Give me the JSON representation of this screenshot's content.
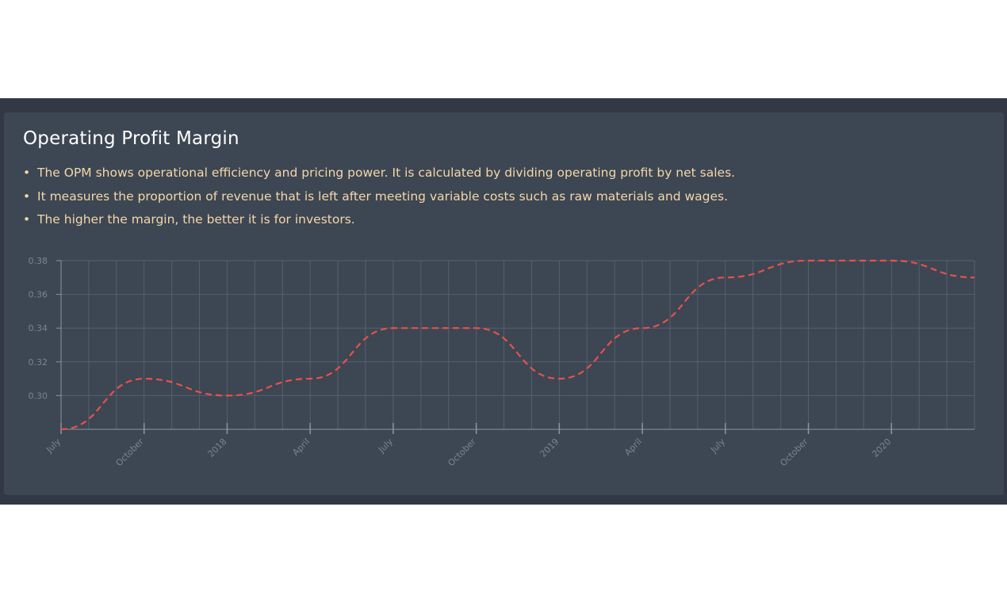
{
  "card": {
    "title": "Operating Profit Margin",
    "bullets": [
      "The OPM shows operational efficiency and pricing power. It is calculated by dividing operating profit by net sales.",
      "It measures the proportion of revenue that is left after meeting variable costs such as raw materials and wages.",
      "The higher the margin, the better it is for investors."
    ]
  },
  "colors": {
    "page_bg": "#ffffff",
    "band_bg": "#323844",
    "card_bg": "#3d4653",
    "title": "#ffffff",
    "bullet_text": "#f4d7a8",
    "line": "#e8514a",
    "grid": "#56606d",
    "axis": "#8c96a3",
    "tick_text": "#7b8491"
  },
  "chart_data": {
    "type": "line",
    "title": "",
    "xlabel": "",
    "ylabel": "",
    "x_tick_labels": [
      "July",
      "October",
      "2018",
      "April",
      "July",
      "October",
      "2019",
      "April",
      "July",
      "October",
      "2020"
    ],
    "x_tick_dates": [
      "2017-07",
      "2017-10",
      "2018-01",
      "2018-04",
      "2018-07",
      "2018-10",
      "2019-01",
      "2019-04",
      "2019-07",
      "2019-10",
      "2020-01"
    ],
    "x_range": [
      "2017-07",
      "2020-04"
    ],
    "y_ticks": [
      "0.30",
      "0.32",
      "0.34",
      "0.36",
      "0.38"
    ],
    "y_tick_values": [
      0.3,
      0.32,
      0.34,
      0.36,
      0.38
    ],
    "ylim": [
      0.28,
      0.38
    ],
    "grid": true,
    "line_style": "dashed",
    "series": [
      {
        "dates": [
          "2017-07",
          "2017-10",
          "2018-01",
          "2018-04",
          "2018-07",
          "2018-10",
          "2019-01",
          "2019-04",
          "2019-07",
          "2019-10",
          "2020-01",
          "2020-04"
        ],
        "values": [
          0.28,
          0.31,
          0.3,
          0.31,
          0.34,
          0.34,
          0.31,
          0.34,
          0.37,
          0.38,
          0.38,
          0.37
        ]
      }
    ]
  }
}
